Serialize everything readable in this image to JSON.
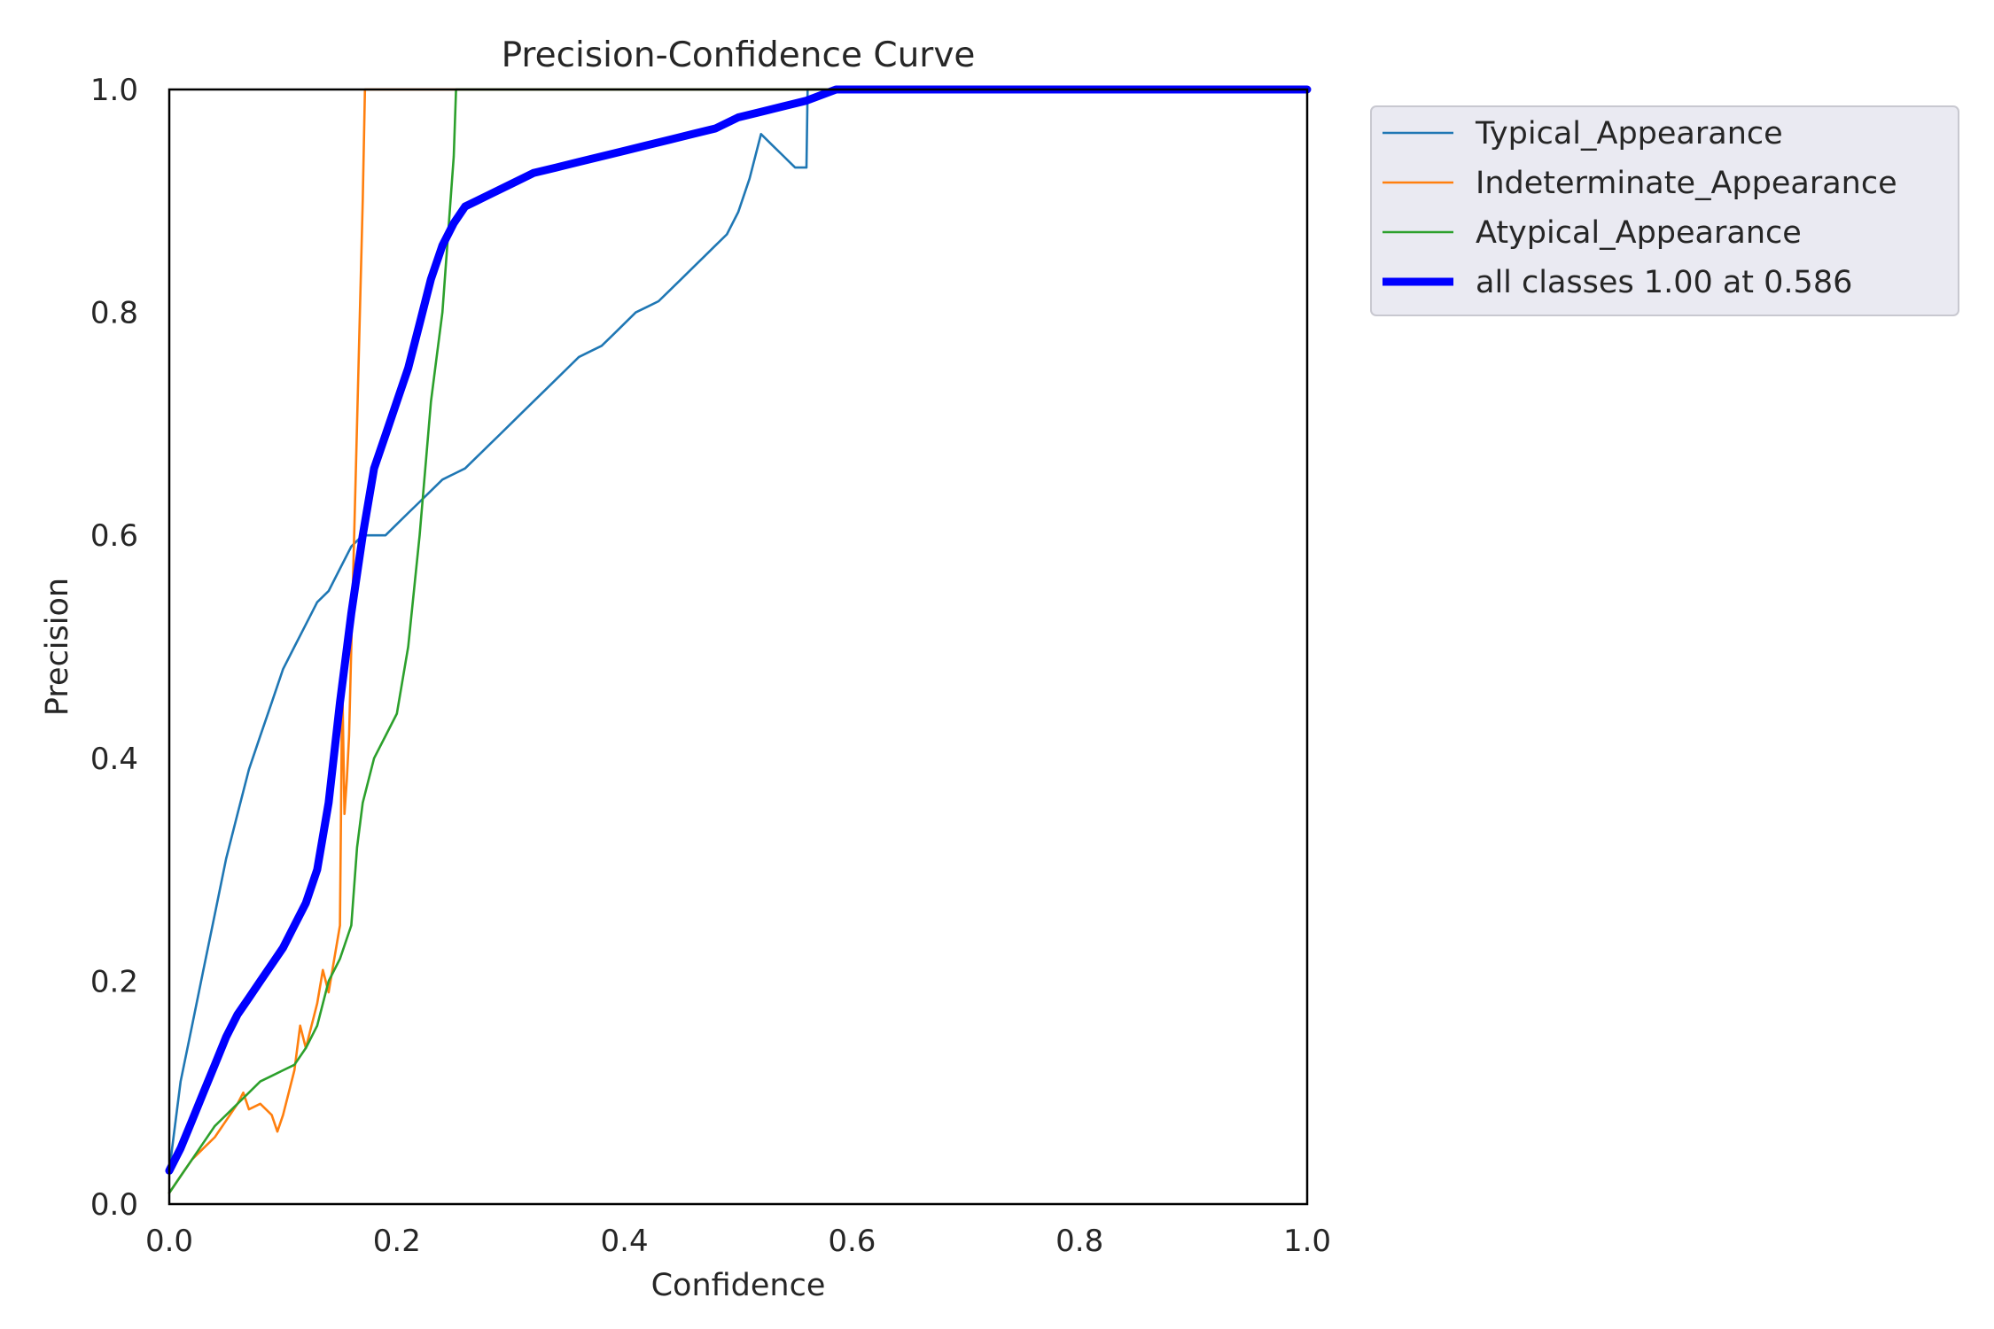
{
  "chart_data": {
    "type": "line",
    "title": "Precision-Confidence Curve",
    "xlabel": "Confidence",
    "ylabel": "Precision",
    "xlim": [
      0,
      1
    ],
    "ylim": [
      0,
      1
    ],
    "xticks": [
      "0.0",
      "0.2",
      "0.4",
      "0.6",
      "0.8",
      "1.0"
    ],
    "yticks": [
      "0.0",
      "0.2",
      "0.4",
      "0.6",
      "0.8",
      "1.0"
    ],
    "grid": false,
    "legend_position": "outside-top-right",
    "series": [
      {
        "name": "Typical_Appearance",
        "color": "#1f77b4",
        "width": "thin",
        "x": [
          0.0,
          0.005,
          0.01,
          0.02,
          0.03,
          0.04,
          0.05,
          0.06,
          0.07,
          0.08,
          0.09,
          0.1,
          0.11,
          0.12,
          0.13,
          0.14,
          0.15,
          0.16,
          0.17,
          0.18,
          0.19,
          0.2,
          0.21,
          0.22,
          0.23,
          0.24,
          0.25,
          0.26,
          0.27,
          0.28,
          0.29,
          0.3,
          0.31,
          0.32,
          0.33,
          0.34,
          0.35,
          0.36,
          0.37,
          0.38,
          0.39,
          0.4,
          0.41,
          0.42,
          0.43,
          0.44,
          0.45,
          0.46,
          0.47,
          0.48,
          0.49,
          0.5,
          0.51,
          0.52,
          0.53,
          0.54,
          0.55,
          0.56,
          0.561,
          0.58,
          0.6,
          0.7,
          0.8,
          0.9,
          1.0
        ],
        "y": [
          0.03,
          0.07,
          0.11,
          0.16,
          0.21,
          0.26,
          0.31,
          0.35,
          0.39,
          0.42,
          0.45,
          0.48,
          0.5,
          0.52,
          0.54,
          0.55,
          0.57,
          0.59,
          0.6,
          0.6,
          0.6,
          0.61,
          0.62,
          0.63,
          0.64,
          0.65,
          0.655,
          0.66,
          0.67,
          0.68,
          0.69,
          0.7,
          0.71,
          0.72,
          0.73,
          0.74,
          0.75,
          0.76,
          0.765,
          0.77,
          0.78,
          0.79,
          0.8,
          0.805,
          0.81,
          0.82,
          0.83,
          0.84,
          0.85,
          0.86,
          0.87,
          0.89,
          0.92,
          0.96,
          0.95,
          0.94,
          0.93,
          0.93,
          1.0,
          1.0,
          1.0,
          1.0,
          1.0,
          1.0,
          1.0
        ]
      },
      {
        "name": "Indeterminate_Appearance",
        "color": "#ff7f0e",
        "width": "thin",
        "x": [
          0.0,
          0.01,
          0.02,
          0.03,
          0.04,
          0.05,
          0.06,
          0.065,
          0.07,
          0.08,
          0.09,
          0.095,
          0.1,
          0.11,
          0.115,
          0.12,
          0.125,
          0.13,
          0.135,
          0.14,
          0.145,
          0.15,
          0.152,
          0.154,
          0.156,
          0.158,
          0.16,
          0.165,
          0.17,
          0.172,
          0.175,
          0.18,
          0.2,
          0.4,
          0.6,
          0.8,
          1.0
        ],
        "y": [
          0.01,
          0.025,
          0.04,
          0.05,
          0.06,
          0.075,
          0.09,
          0.1,
          0.085,
          0.09,
          0.08,
          0.065,
          0.08,
          0.12,
          0.16,
          0.14,
          0.16,
          0.18,
          0.21,
          0.19,
          0.22,
          0.25,
          0.47,
          0.35,
          0.38,
          0.42,
          0.5,
          0.7,
          0.9,
          1.0,
          1.0,
          1.0,
          1.0,
          1.0,
          1.0,
          1.0,
          1.0
        ]
      },
      {
        "name": "Atypical_Appearance",
        "color": "#2ca02c",
        "width": "thin",
        "x": [
          0.0,
          0.01,
          0.02,
          0.03,
          0.04,
          0.05,
          0.06,
          0.07,
          0.08,
          0.09,
          0.1,
          0.11,
          0.12,
          0.13,
          0.14,
          0.15,
          0.16,
          0.165,
          0.17,
          0.18,
          0.19,
          0.2,
          0.21,
          0.22,
          0.23,
          0.235,
          0.24,
          0.245,
          0.25,
          0.252,
          0.255,
          0.26,
          0.3,
          0.4,
          0.6,
          0.8,
          1.0
        ],
        "y": [
          0.01,
          0.025,
          0.04,
          0.055,
          0.07,
          0.08,
          0.09,
          0.1,
          0.11,
          0.115,
          0.12,
          0.125,
          0.14,
          0.16,
          0.2,
          0.22,
          0.25,
          0.32,
          0.36,
          0.4,
          0.42,
          0.44,
          0.5,
          0.6,
          0.72,
          0.76,
          0.8,
          0.87,
          0.94,
          1.0,
          1.0,
          1.0,
          1.0,
          1.0,
          1.0,
          1.0,
          1.0
        ]
      },
      {
        "name": "all classes 1.00 at 0.586",
        "color": "#0000ff",
        "width": "thick",
        "x": [
          0.0,
          0.01,
          0.02,
          0.03,
          0.04,
          0.05,
          0.06,
          0.07,
          0.08,
          0.09,
          0.1,
          0.11,
          0.12,
          0.13,
          0.14,
          0.15,
          0.16,
          0.17,
          0.18,
          0.19,
          0.2,
          0.21,
          0.22,
          0.23,
          0.24,
          0.25,
          0.26,
          0.27,
          0.28,
          0.3,
          0.32,
          0.34,
          0.36,
          0.38,
          0.4,
          0.42,
          0.44,
          0.46,
          0.48,
          0.5,
          0.52,
          0.54,
          0.56,
          0.586,
          0.6,
          0.7,
          0.8,
          0.9,
          1.0
        ],
        "y": [
          0.03,
          0.05,
          0.075,
          0.1,
          0.125,
          0.15,
          0.17,
          0.185,
          0.2,
          0.215,
          0.23,
          0.25,
          0.27,
          0.3,
          0.36,
          0.45,
          0.53,
          0.6,
          0.66,
          0.69,
          0.72,
          0.75,
          0.79,
          0.83,
          0.86,
          0.88,
          0.895,
          0.9,
          0.905,
          0.915,
          0.925,
          0.93,
          0.935,
          0.94,
          0.945,
          0.95,
          0.955,
          0.96,
          0.965,
          0.975,
          0.98,
          0.985,
          0.99,
          1.0,
          1.0,
          1.0,
          1.0,
          1.0,
          1.0
        ]
      }
    ]
  }
}
